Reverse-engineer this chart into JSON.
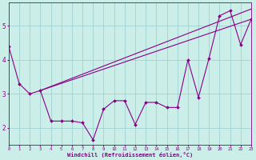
{
  "xlabel": "Windchill (Refroidissement éolien,°C)",
  "background_color": "#cceee8",
  "line_color": "#880088",
  "grid_color": "#99cccc",
  "x_data": [
    0,
    1,
    2,
    3,
    4,
    5,
    6,
    7,
    8,
    9,
    10,
    11,
    12,
    13,
    14,
    15,
    16,
    17,
    18,
    19,
    20,
    21,
    22,
    23
  ],
  "y_main": [
    4.4,
    3.3,
    3.0,
    3.1,
    2.2,
    2.2,
    2.2,
    2.15,
    1.65,
    2.55,
    2.8,
    2.8,
    2.1,
    2.75,
    2.75,
    2.6,
    2.6,
    4.0,
    2.9,
    4.05,
    5.3,
    5.45,
    4.45,
    5.2
  ],
  "trend1_x": [
    3,
    23
  ],
  "trend1_y": [
    3.1,
    5.5
  ],
  "trend2_x": [
    3,
    23
  ],
  "trend2_y": [
    3.1,
    5.2
  ],
  "xlim": [
    0,
    23
  ],
  "ylim": [
    1.5,
    5.7
  ],
  "yticks": [
    2,
    3,
    4,
    5
  ],
  "xticks": [
    0,
    1,
    2,
    3,
    4,
    5,
    6,
    7,
    8,
    9,
    10,
    11,
    12,
    13,
    14,
    15,
    16,
    17,
    18,
    19,
    20,
    21,
    22,
    23
  ]
}
